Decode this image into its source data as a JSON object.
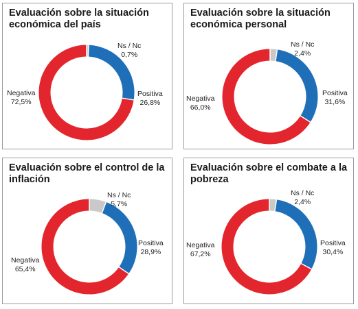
{
  "colors": {
    "positiva": "#1f6fb8",
    "negativa": "#e3262d",
    "nsnc": "#c9c9c9"
  },
  "chart_data": [
    {
      "type": "pie",
      "style": "donut",
      "title": "Evaluación sobre la situación económica del país",
      "slices": [
        {
          "label": "Ns / Nc",
          "value": 0.7,
          "text": "0,7%",
          "color": "#c9c9c9"
        },
        {
          "label": "Positiva",
          "value": 26.8,
          "text": "26,8%",
          "color": "#1f6fb8"
        },
        {
          "label": "Negativa",
          "value": 72.5,
          "text": "72,5%",
          "color": "#e3262d"
        }
      ]
    },
    {
      "type": "pie",
      "style": "donut",
      "title": "Evaluación sobre la situación económica personal",
      "slices": [
        {
          "label": "Ns / Nc",
          "value": 2.4,
          "text": "2,4%",
          "color": "#c9c9c9"
        },
        {
          "label": "Positiva",
          "value": 31.6,
          "text": "31,6%",
          "color": "#1f6fb8"
        },
        {
          "label": "Negativa",
          "value": 66.0,
          "text": "66,0%",
          "color": "#e3262d"
        }
      ]
    },
    {
      "type": "pie",
      "style": "donut",
      "title": "Evaluación sobre el control de la inflación",
      "slices": [
        {
          "label": "Ns / Nc",
          "value": 5.7,
          "text": "5,7%",
          "color": "#c9c9c9"
        },
        {
          "label": "Positiva",
          "value": 28.9,
          "text": "28,9%",
          "color": "#1f6fb8"
        },
        {
          "label": "Negativa",
          "value": 65.4,
          "text": "65,4%",
          "color": "#e3262d"
        }
      ]
    },
    {
      "type": "pie",
      "style": "donut",
      "title": "Evaluación sobre el combate a la pobreza",
      "slices": [
        {
          "label": "Ns / Nc",
          "value": 2.4,
          "text": "2,4%",
          "color": "#c9c9c9"
        },
        {
          "label": "Positiva",
          "value": 30.4,
          "text": "30,4%",
          "color": "#1f6fb8"
        },
        {
          "label": "Negativa",
          "value": 67.2,
          "text": "67,2%",
          "color": "#e3262d"
        }
      ]
    }
  ]
}
